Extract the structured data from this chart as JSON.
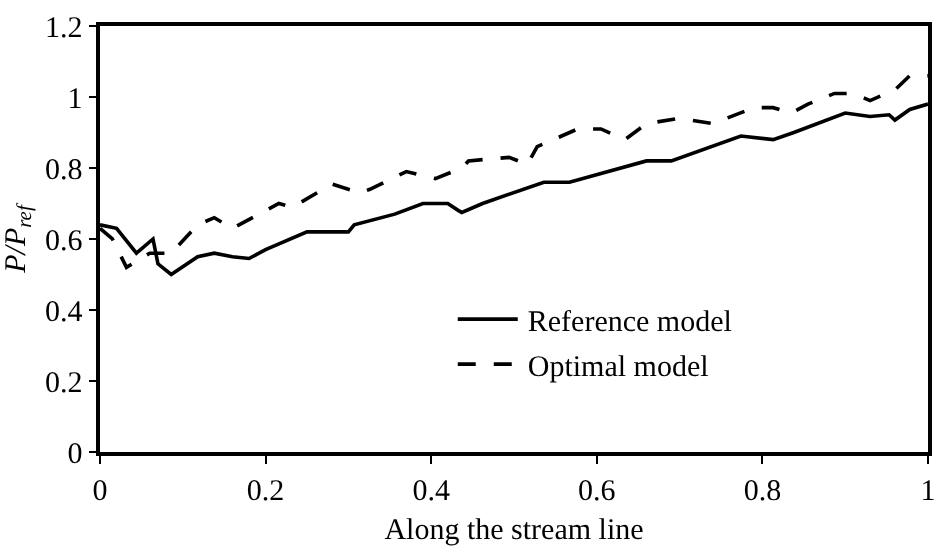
{
  "chart_data": {
    "type": "line",
    "xlabel": "Along the stream line",
    "ylabel": "P/P$_{ref}$",
    "xlim": [
      0,
      1
    ],
    "xticks": [
      0,
      0.2,
      0.4,
      0.6,
      0.8,
      1
    ],
    "ylim": [
      0,
      1.2
    ],
    "yticks": [
      0,
      0.2,
      0.4,
      0.6,
      0.8,
      1,
      1.2
    ],
    "grid": false,
    "legend": "bottom right",
    "marker": "none",
    "series": [
      {
        "name": "Reference model",
        "color": "#000000",
        "line_style": "solid",
        "x": [
          0,
          0.02,
          0.044,
          0.064,
          0.07,
          0.086,
          0.118,
          0.138,
          0.16,
          0.18,
          0.2,
          0.25,
          0.3,
          0.307,
          0.356,
          0.39,
          0.42,
          0.433,
          0.437,
          0.462,
          0.536,
          0.567,
          0.66,
          0.69,
          0.774,
          0.813,
          0.838,
          0.9,
          0.93,
          0.953,
          0.96,
          0.978,
          1
        ],
        "values": [
          0.64,
          0.63,
          0.56,
          0.6,
          0.53,
          0.5,
          0.55,
          0.56,
          0.55,
          0.545,
          0.57,
          0.62,
          0.62,
          0.64,
          0.67,
          0.7,
          0.7,
          0.68,
          0.675,
          0.7,
          0.76,
          0.76,
          0.82,
          0.82,
          0.89,
          0.88,
          0.9,
          0.955,
          0.945,
          0.95,
          0.935,
          0.965,
          0.98
        ]
      },
      {
        "name": "Optimal model",
        "color": "#000000",
        "line_style": "dashed",
        "x": [
          0,
          0.015,
          0.032,
          0.06,
          0.086,
          0.118,
          0.138,
          0.16,
          0.216,
          0.233,
          0.28,
          0.314,
          0.326,
          0.37,
          0.405,
          0.437,
          0.445,
          0.494,
          0.516,
          0.528,
          0.577,
          0.605,
          0.634,
          0.66,
          0.7,
          0.74,
          0.79,
          0.813,
          0.835,
          0.855,
          0.887,
          0.91,
          0.93,
          0.96,
          0.978,
          1
        ],
        "values": [
          0.63,
          0.6,
          0.52,
          0.56,
          0.56,
          0.64,
          0.66,
          0.63,
          0.7,
          0.69,
          0.755,
          0.73,
          0.74,
          0.79,
          0.77,
          0.8,
          0.82,
          0.83,
          0.81,
          0.86,
          0.91,
          0.91,
          0.88,
          0.925,
          0.94,
          0.925,
          0.97,
          0.97,
          0.955,
          0.98,
          1.01,
          1.01,
          0.99,
          1.02,
          1.06,
          1.06
        ]
      }
    ]
  }
}
